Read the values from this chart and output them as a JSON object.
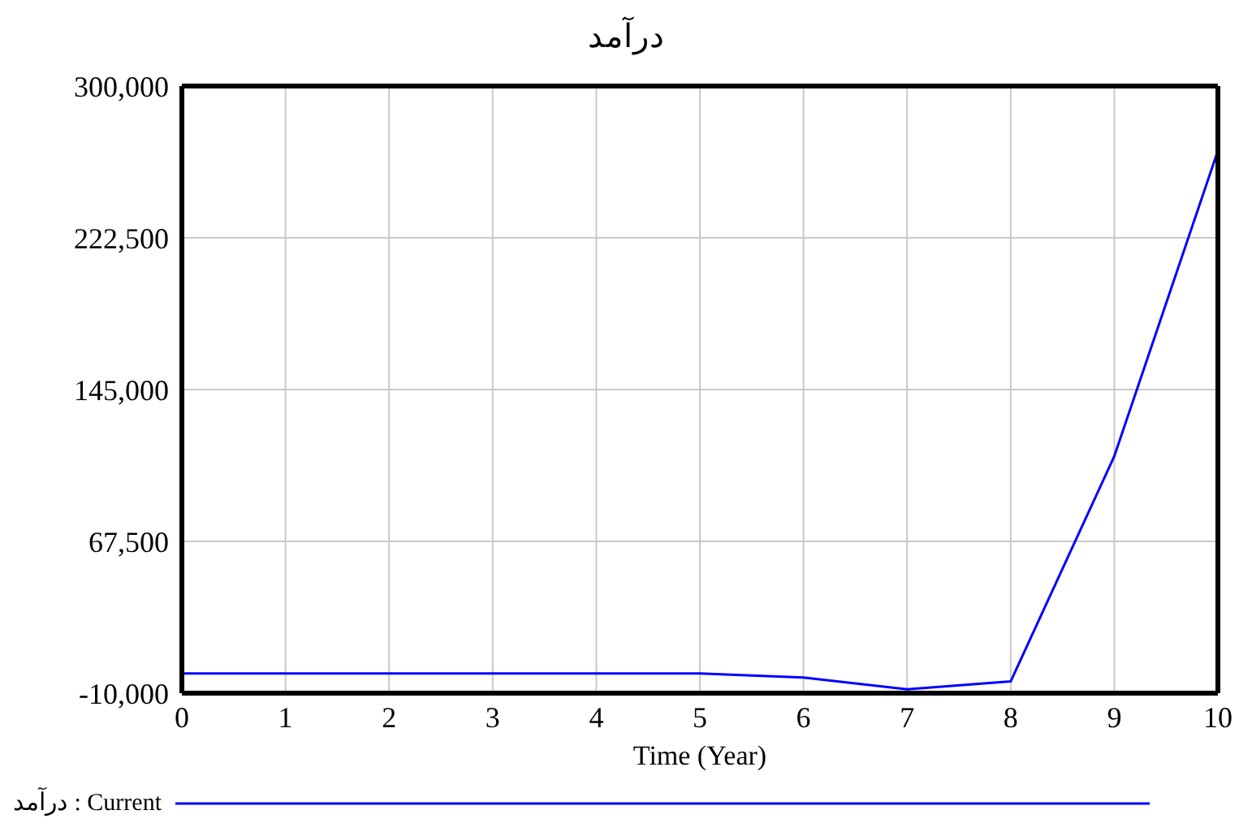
{
  "chart_data": {
    "type": "line",
    "title": "درآمد",
    "xlabel": "Time (Year)",
    "x": [
      0,
      1,
      2,
      3,
      4,
      5,
      6,
      7,
      8,
      9,
      10
    ],
    "series": [
      {
        "name": "درآمد : Current",
        "color": "#0000ff",
        "values": [
          0,
          0,
          0,
          0,
          0,
          0,
          -2000,
          -8000,
          -4000,
          111000,
          267000
        ]
      }
    ],
    "xlim": [
      0,
      10
    ],
    "xticks": [
      0,
      1,
      2,
      3,
      4,
      5,
      6,
      7,
      8,
      9,
      10
    ],
    "ylim": [
      -10000,
      300000
    ],
    "yticks": [
      {
        "value": -10000,
        "label": "-10,000"
      },
      {
        "value": 67500,
        "label": "67,500"
      },
      {
        "value": 145000,
        "label": "145,000"
      },
      {
        "value": 222500,
        "label": "222,500"
      },
      {
        "value": 300000,
        "label": "300,000"
      }
    ],
    "grid": true,
    "legend": "bottom"
  }
}
